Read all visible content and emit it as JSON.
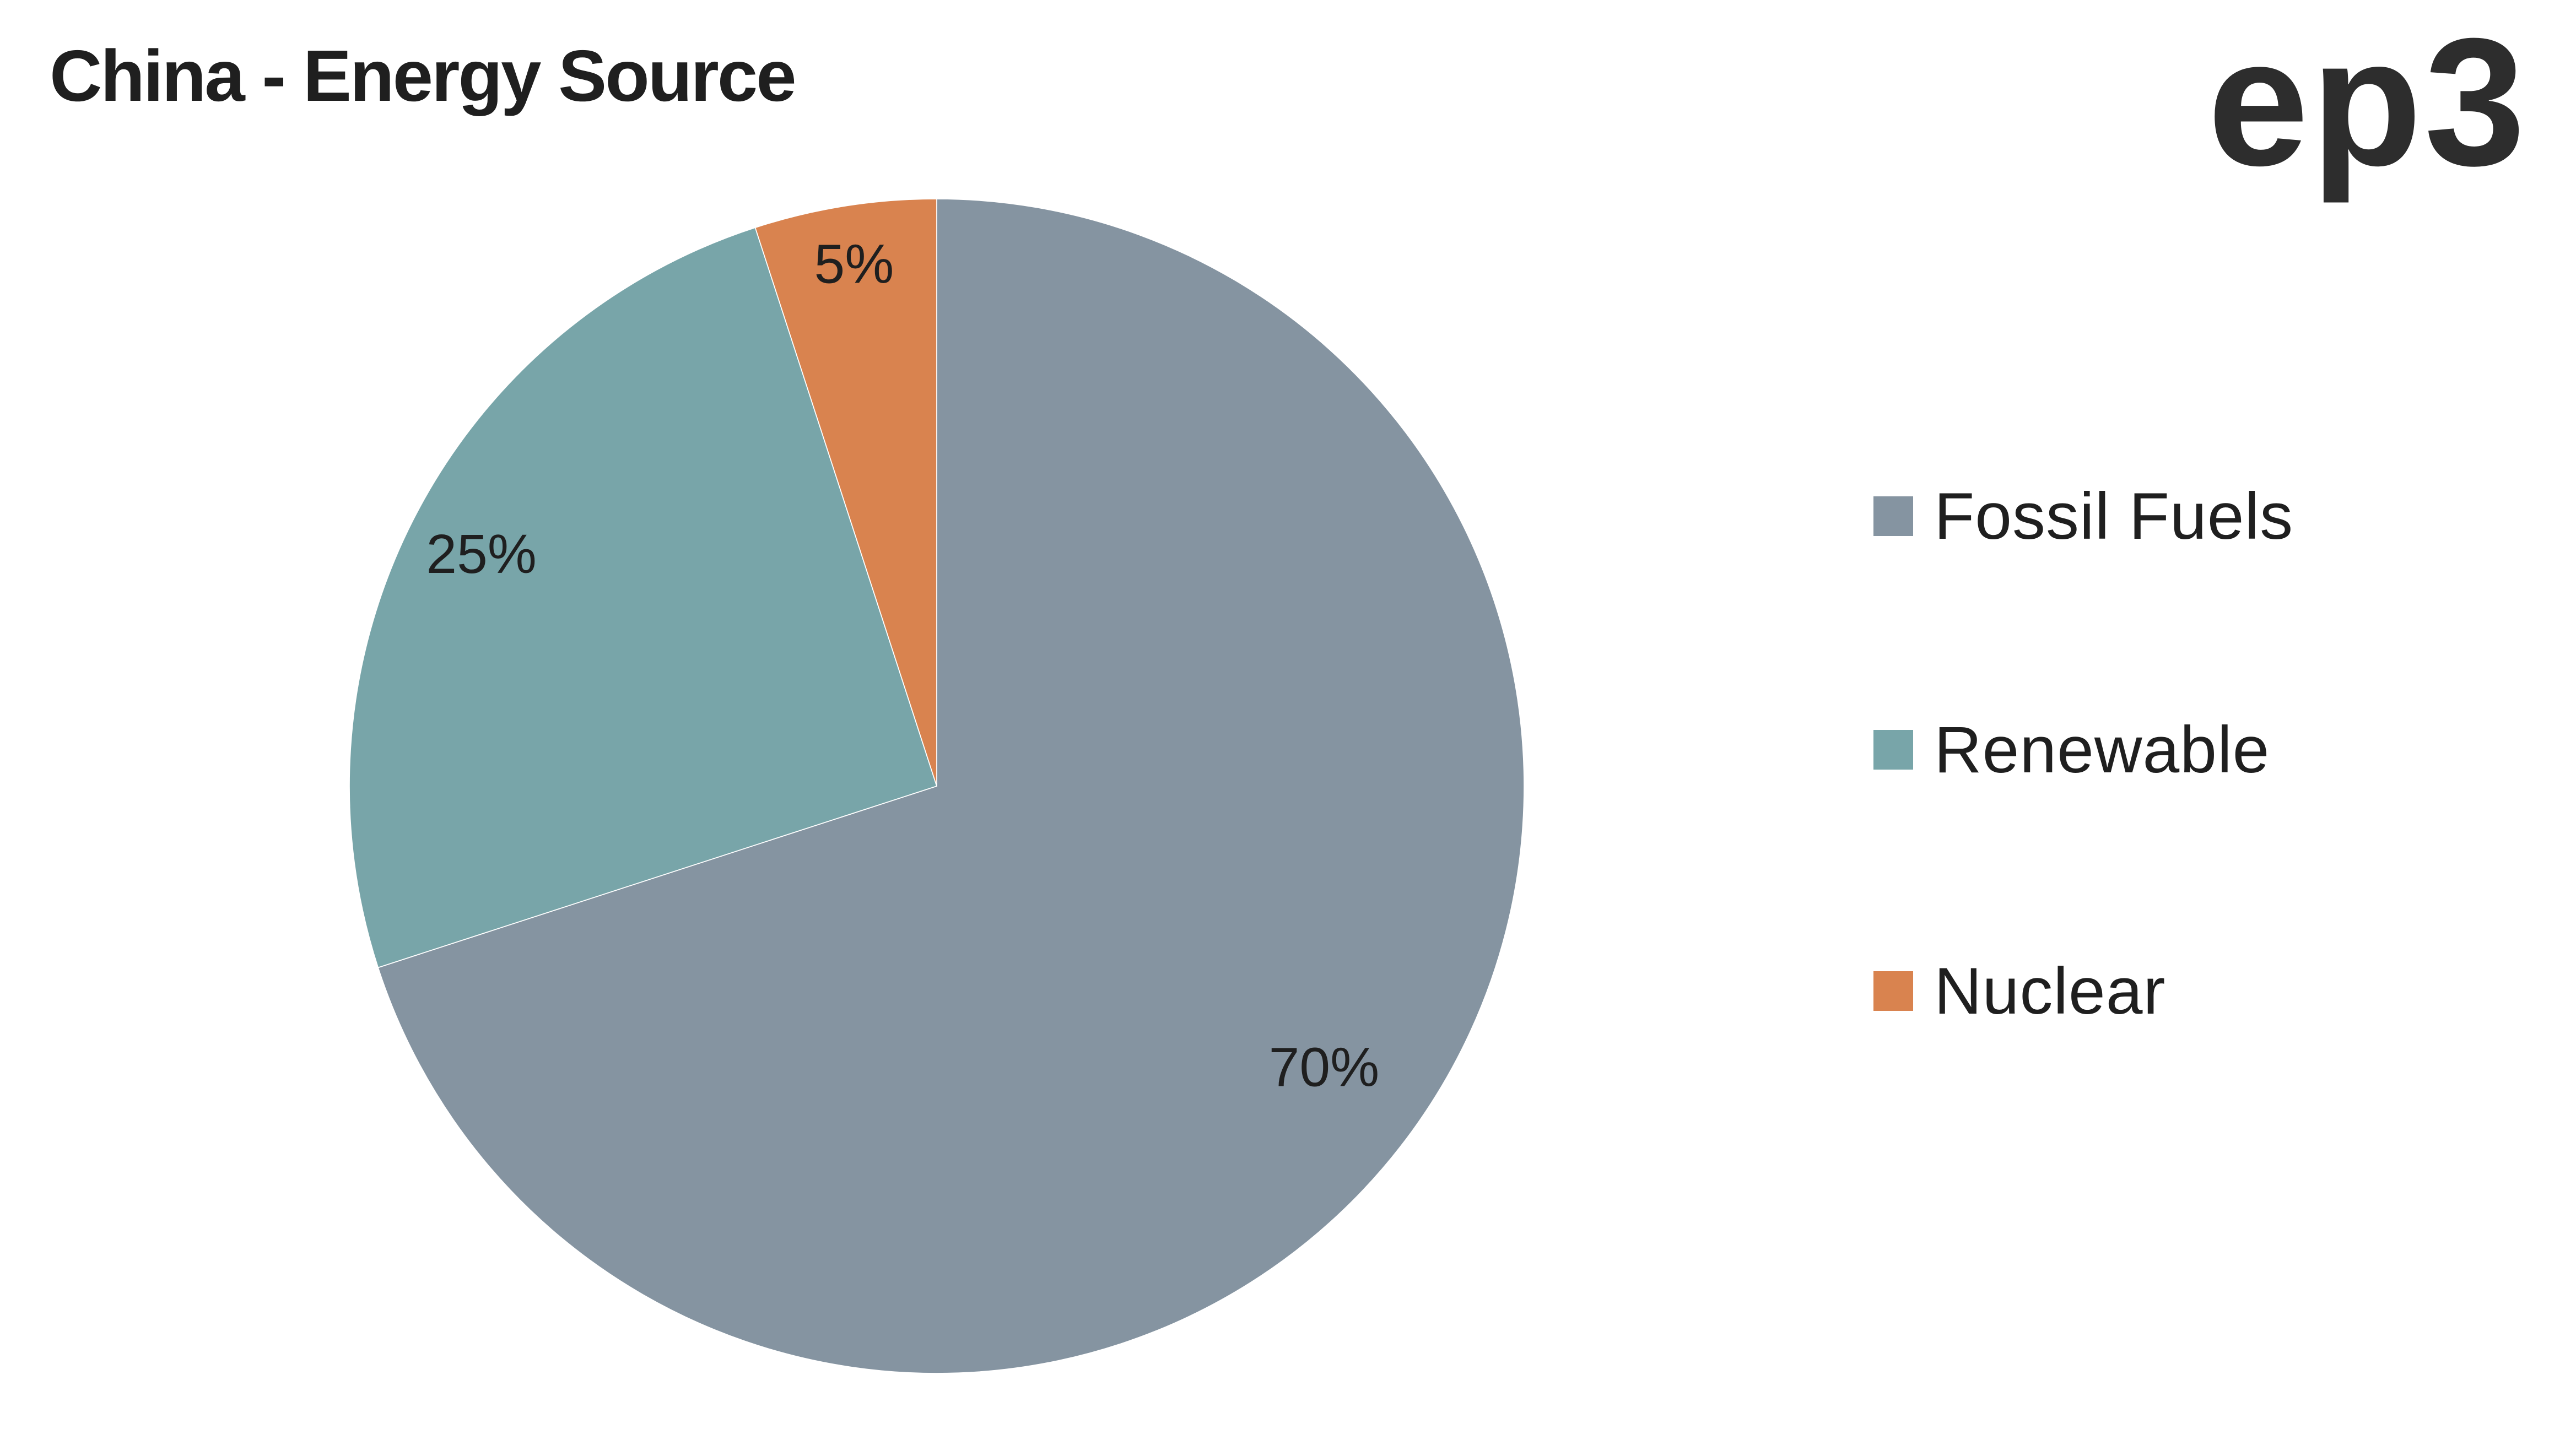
{
  "header": {
    "title": "China - Energy Source",
    "logo_text": "ep3"
  },
  "colors": {
    "background": "#ffffff",
    "title_text": "#1f1f1f",
    "logo_text": "#2d2d2d",
    "label_text": "#1f1f1f"
  },
  "chart_data": {
    "type": "pie",
    "title": "China - Energy Source",
    "start_angle_deg": 0,
    "direction": "clockwise",
    "legend_position": "right",
    "data_labels": "percent",
    "slices": [
      {
        "label": "Fossil Fuels",
        "value": 70,
        "percent_label": "70%",
        "color": "#8594A1"
      },
      {
        "label": "Renewable",
        "value": 25,
        "percent_label": "25%",
        "color": "#78A5A9"
      },
      {
        "label": "Nuclear",
        "value": 5,
        "percent_label": "5%",
        "color": "#D9834F"
      }
    ]
  }
}
